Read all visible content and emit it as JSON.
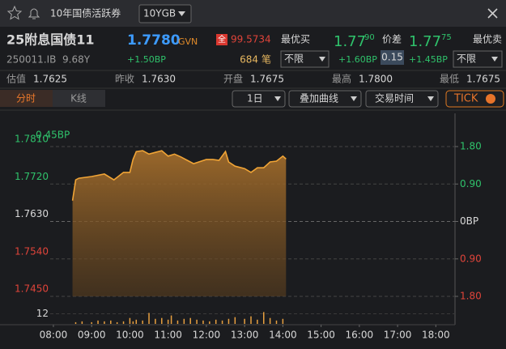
{
  "header": {
    "title": "10年国债活跃券",
    "selector": "10YGB"
  },
  "quote": {
    "name": "25附息国债11",
    "price": "1.7780",
    "source": "GVN",
    "full_label": "全",
    "full_price": "99.5734",
    "code": "250011.IB",
    "term": "9.68Y",
    "change": "+1.50BP",
    "volume": "684",
    "volume_unit": "笔"
  },
  "bid": {
    "label": "最优买",
    "price_main": "1.77",
    "price_sup": "90",
    "filter": "不限",
    "change": "+1.60BP"
  },
  "spread": {
    "label": "价差",
    "value": "0.15"
  },
  "ask": {
    "label": "最优卖",
    "price_main": "1.77",
    "price_sup": "75",
    "filter": "不限",
    "change": "+1.45BP"
  },
  "stats": [
    {
      "label": "估值",
      "value": "1.7625"
    },
    {
      "label": "昨收",
      "value": "1.7630"
    },
    {
      "label": "开盘",
      "value": "1.7675"
    },
    {
      "label": "最高",
      "value": "1.7800"
    },
    {
      "label": "最低",
      "value": "1.7675"
    }
  ],
  "tabs": [
    "分时",
    "K线"
  ],
  "controls": [
    "1日",
    "叠加曲线",
    "交易时间",
    "TICK"
  ],
  "chart_data": [
    {
      "type": "line",
      "annotation": "0.45BP",
      "color": "#f0a436",
      "grid": true,
      "x": [
        "08:30",
        "08:35",
        "08:40",
        "09:00",
        "09:20",
        "09:35",
        "09:50",
        "10:00",
        "10:05",
        "10:10",
        "10:20",
        "10:30",
        "10:40",
        "10:50",
        "11:00",
        "11:10",
        "11:20",
        "11:30",
        "11:40",
        "12:00",
        "12:10",
        "12:20",
        "12:30",
        "12:35",
        "12:45",
        "13:00",
        "13:10",
        "13:20",
        "13:30",
        "13:40",
        "13:50",
        "14:00",
        "14:05"
      ],
      "values": [
        1.768,
        1.773,
        1.7734,
        1.7738,
        1.7744,
        1.773,
        1.7748,
        1.7748,
        1.7779,
        1.7798,
        1.78,
        1.7792,
        1.7796,
        1.78,
        1.7787,
        1.7792,
        1.7785,
        1.7777,
        1.7769,
        1.7779,
        1.7779,
        1.7777,
        1.7798,
        1.7773,
        1.7763,
        1.7757,
        1.7748,
        1.7759,
        1.7759,
        1.7773,
        1.7775,
        1.7787,
        1.778
      ],
      "xlim": [
        "07:55",
        "18:25"
      ],
      "xticks": [
        "08:00",
        "09:00",
        "10:00",
        "11:00",
        "12:00",
        "13:00",
        "14:00",
        "15:00",
        "16:00",
        "17:00",
        "18:00"
      ],
      "ylim": [
        1.745,
        1.781
      ],
      "yticks": [
        {
          "value": 1.781,
          "label": "1.7810"
        },
        {
          "value": 1.772,
          "label": "1.7720"
        },
        {
          "value": 1.763,
          "label": "1.7630"
        },
        {
          "value": 1.754,
          "label": "1.7540"
        },
        {
          "value": 1.745,
          "label": "1.7450"
        }
      ],
      "y2lim": [
        -1.8,
        1.8
      ],
      "y2ticks": [
        {
          "value": 1.8,
          "label": "1.80"
        },
        {
          "value": 0.9,
          "label": "0.90"
        },
        {
          "value": 0,
          "label": "0BP"
        },
        {
          "value": -0.9,
          "label": "0.90"
        },
        {
          "value": -1.8,
          "label": "1.80"
        }
      ]
    },
    {
      "type": "bar",
      "color": "#e8a040",
      "x": [
        "08:35",
        "08:45",
        "09:00",
        "09:10",
        "09:20",
        "09:30",
        "09:40",
        "09:50",
        "10:00",
        "10:05",
        "10:10",
        "10:20",
        "10:30",
        "10:40",
        "10:50",
        "11:00",
        "11:05",
        "11:15",
        "11:25",
        "11:35",
        "11:45",
        "11:55",
        "12:05",
        "12:15",
        "12:25",
        "12:35",
        "12:45",
        "13:00",
        "13:10",
        "13:20",
        "13:30",
        "13:40",
        "13:50",
        "14:00"
      ],
      "values": [
        2,
        3,
        2,
        4,
        3,
        4,
        2,
        3,
        7,
        3,
        5,
        4,
        13,
        6,
        7,
        5,
        10,
        4,
        6,
        7,
        5,
        4,
        3,
        5,
        4,
        6,
        8,
        6,
        9,
        5,
        14,
        7,
        4,
        6
      ],
      "ylim": [
        0,
        24
      ],
      "yticks": [
        12
      ]
    }
  ]
}
